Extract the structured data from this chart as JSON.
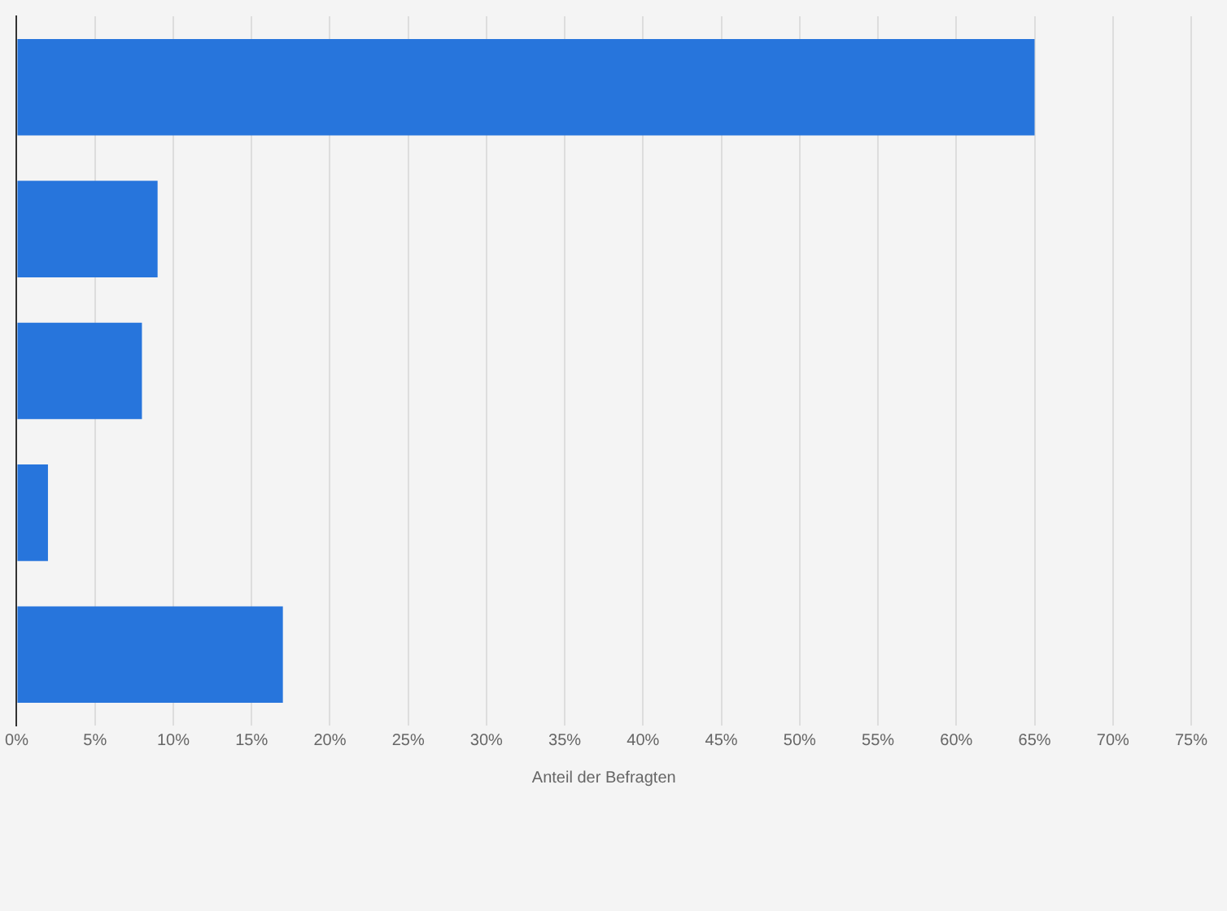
{
  "chart_data": {
    "type": "bar",
    "orientation": "horizontal",
    "xlabel": "Anteil der Befragten",
    "categories": [
      null,
      null,
      null,
      null,
      null
    ],
    "values": [
      65,
      9,
      8,
      2,
      17
    ],
    "color": "#2775dc",
    "xlim": [
      0,
      75
    ],
    "xticks": [
      {
        "value": 0,
        "label": "0%"
      },
      {
        "value": 5,
        "label": "5%"
      },
      {
        "value": 10,
        "label": "10%"
      },
      {
        "value": 15,
        "label": "15%"
      },
      {
        "value": 20,
        "label": "20%"
      },
      {
        "value": 25,
        "label": "25%"
      },
      {
        "value": 30,
        "label": "30%"
      },
      {
        "value": 35,
        "label": "35%"
      },
      {
        "value": 40,
        "label": "40%"
      },
      {
        "value": 45,
        "label": "45%"
      },
      {
        "value": 50,
        "label": "50%"
      },
      {
        "value": 55,
        "label": "55%"
      },
      {
        "value": 60,
        "label": "60%"
      },
      {
        "value": 65,
        "label": "65%"
      },
      {
        "value": 70,
        "label": "70%"
      },
      {
        "value": 75,
        "label": "75%"
      }
    ],
    "grid": "x",
    "tick_labels": "x",
    "legend": false
  }
}
